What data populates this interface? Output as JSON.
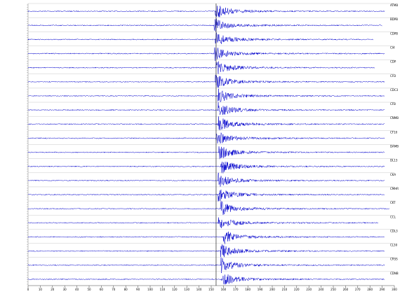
{
  "record": {
    "xlim": [
      0,
      300
    ],
    "xticks": [
      0,
      10,
      20,
      30,
      40,
      50,
      60,
      70,
      80,
      90,
      100,
      110,
      120,
      130,
      140,
      150,
      160,
      170,
      180,
      190,
      200,
      210,
      220,
      230,
      240,
      250,
      260,
      270,
      280,
      290,
      300
    ],
    "pick": 154,
    "trace_color": "#0000cc",
    "traces": [
      {
        "station": "ATMB",
        "onset": 153.4,
        "end": 292
      },
      {
        "station": "BDPB",
        "onset": 152.3,
        "end": 290
      },
      {
        "station": "CDPB",
        "onset": 153.4,
        "end": 283
      },
      {
        "station": "CI4",
        "onset": 152.3,
        "end": 292
      },
      {
        "station": "CDP",
        "onset": 154,
        "end": 284
      },
      {
        "station": "CFD",
        "onset": 153.4,
        "end": 292
      },
      {
        "station": "CDC3",
        "onset": 155.2,
        "end": 292
      },
      {
        "station": "CFB",
        "onset": 155.7,
        "end": 292
      },
      {
        "station": "CNMB",
        "onset": 155.7,
        "end": 292
      },
      {
        "station": "CF10",
        "onset": 154,
        "end": 292
      },
      {
        "station": "DAMB",
        "onset": 156.3,
        "end": 292
      },
      {
        "station": "DL13",
        "onset": 158,
        "end": 292
      },
      {
        "station": "CKA",
        "onset": 155.7,
        "end": 292
      },
      {
        "station": "CMHR",
        "onset": 155.7,
        "end": 292
      },
      {
        "station": "CKT",
        "onset": 157.5,
        "end": 296
      },
      {
        "station": "CCL",
        "onset": 155.7,
        "end": 287
      },
      {
        "station": "CDL3",
        "onset": 159.8,
        "end": 292
      },
      {
        "station": "CL30",
        "onset": 157.5,
        "end": 292
      },
      {
        "station": "CRSS",
        "onset": 158,
        "end": 292
      },
      {
        "station": "CDNB",
        "onset": 158.6,
        "end": 292
      }
    ]
  }
}
